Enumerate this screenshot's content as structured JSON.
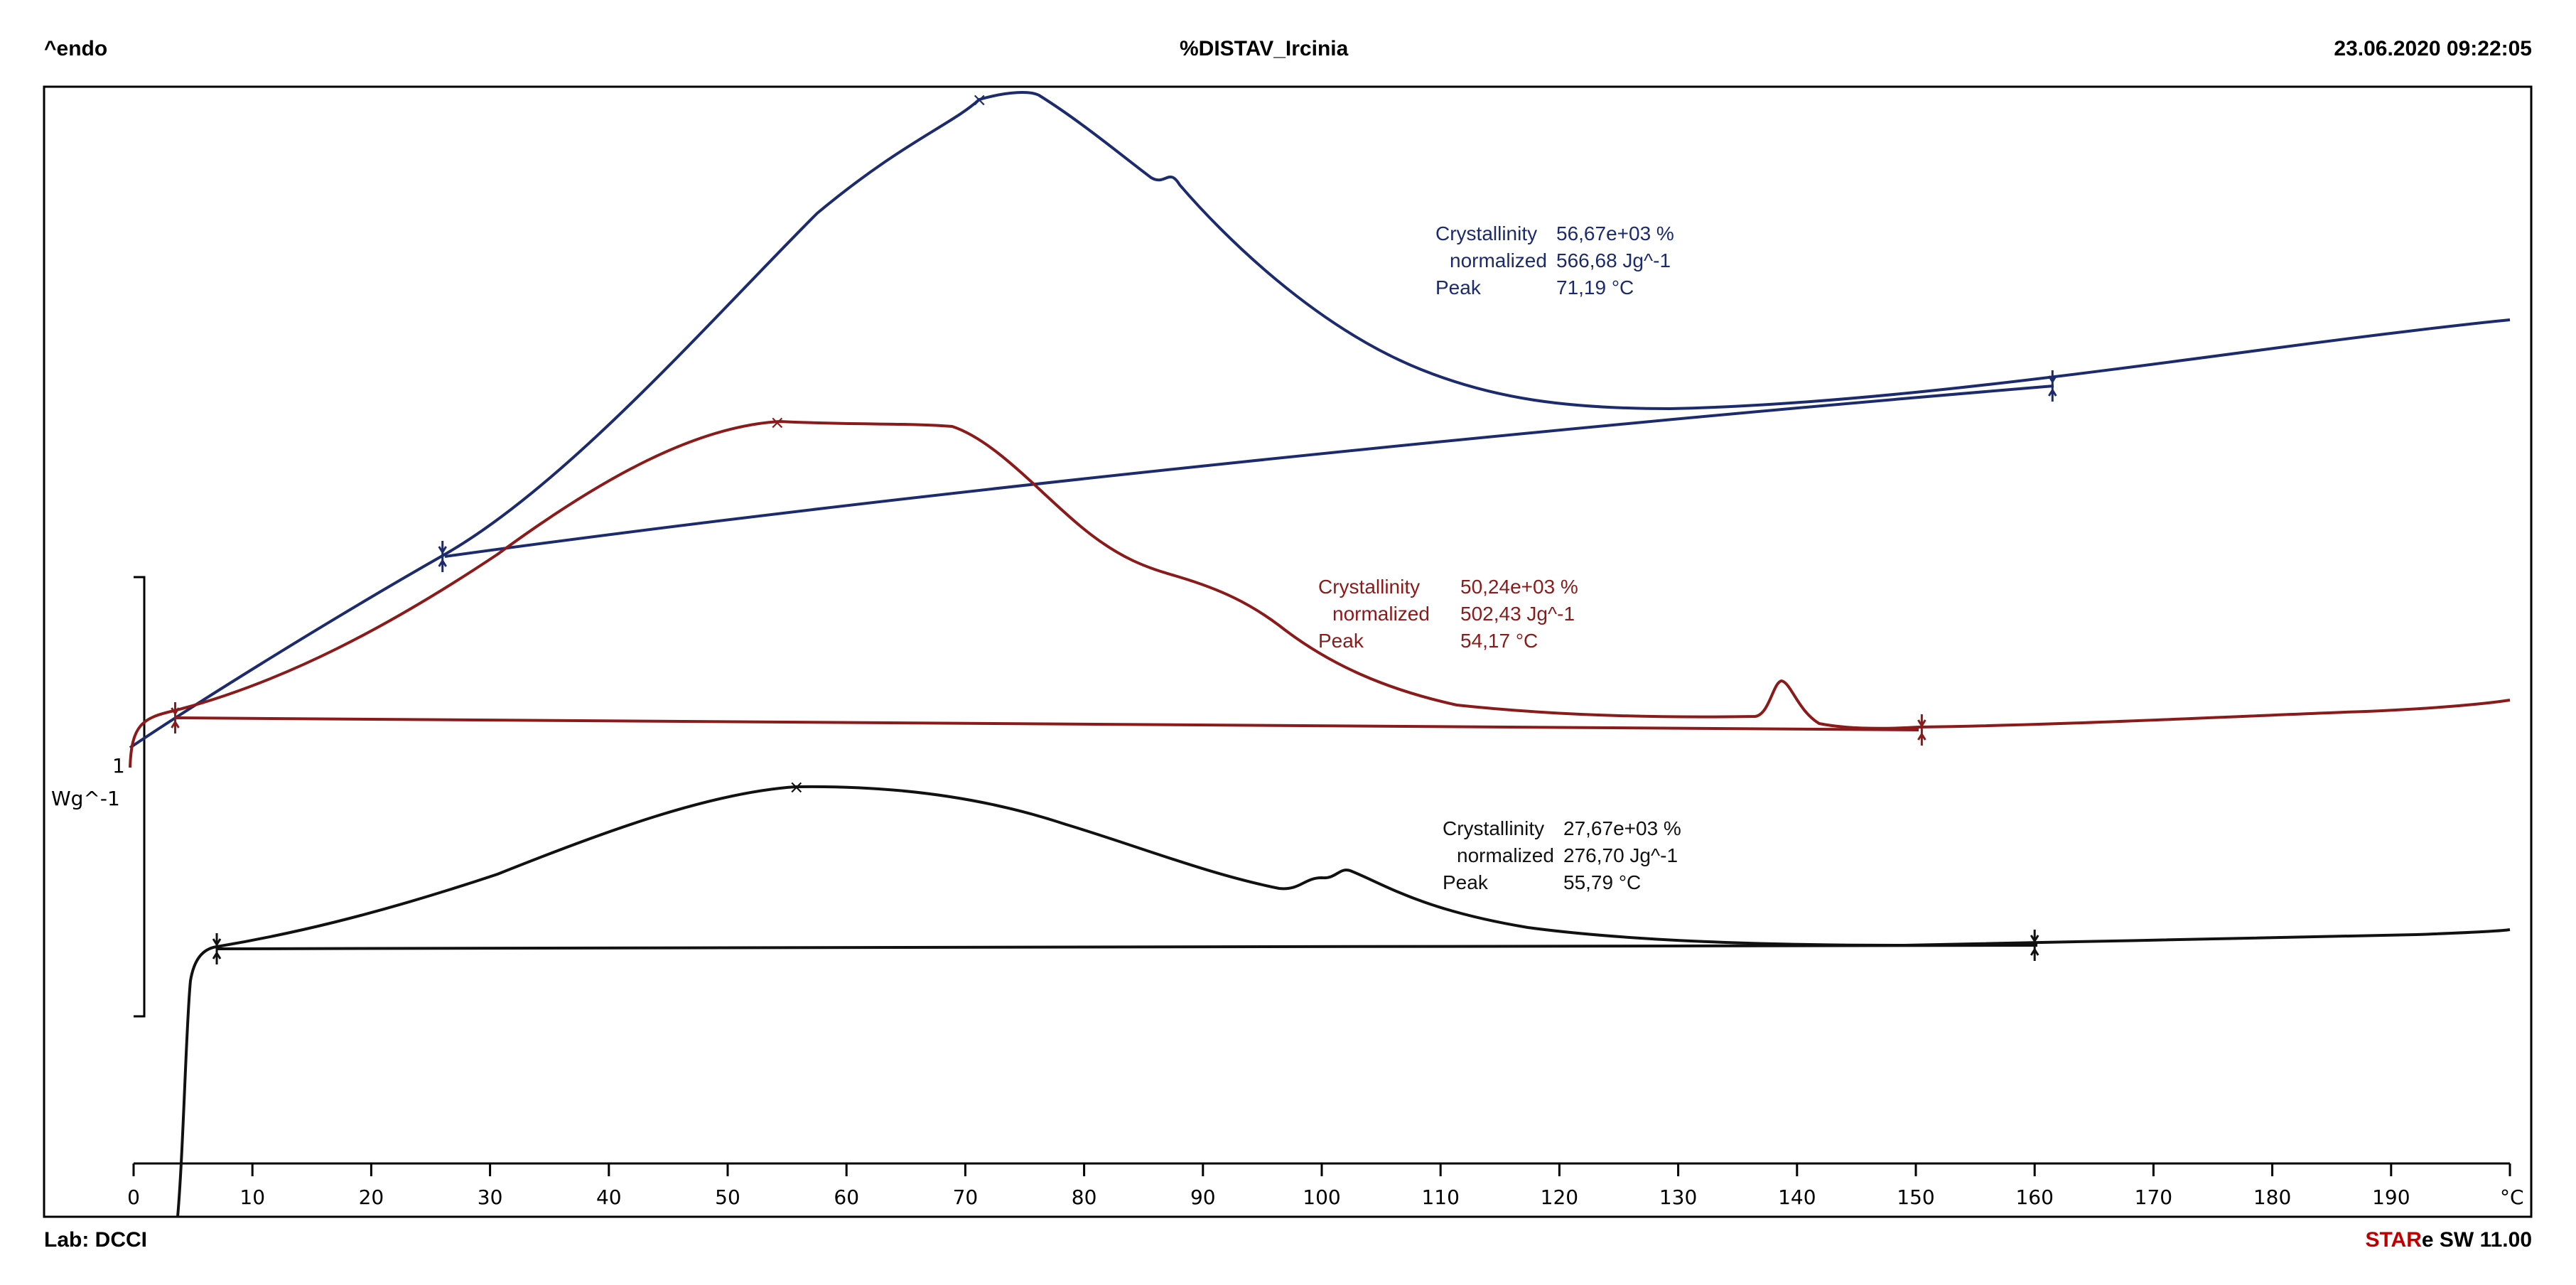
{
  "header": {
    "left": "^endo",
    "center": "%DISTAV_Ircinia",
    "right": "23.06.2020 09:22:05"
  },
  "footer": {
    "left": "Lab: DCCI",
    "right_star": "STAR",
    "right_rest": "SW 11.00"
  },
  "chart_data": {
    "type": "line",
    "title": "%DISTAV_Ircinia",
    "xlabel": "°C",
    "ylabel": "Wg^-1",
    "scale_bar_label": "1",
    "xlim": [
      0,
      200
    ],
    "x_ticks": [
      0,
      10,
      20,
      30,
      40,
      50,
      60,
      70,
      80,
      90,
      100,
      110,
      120,
      130,
      140,
      150,
      160,
      170,
      180,
      190
    ],
    "series": [
      {
        "name": "blue",
        "color": "#1c2a6e",
        "peak_marker_x": 71.19,
        "baseline_limits_x": [
          26,
          161.5
        ],
        "annotations": {
          "crystallinity_label": "Crystallinity",
          "crystallinity_value": "56,67e+03 %",
          "normalized_label": "normalized",
          "normalized_value": "566,68 Jg^-1",
          "peak_label": "Peak",
          "peak_value": "71,19 °C"
        }
      },
      {
        "name": "red",
        "color": "#8b1a1a",
        "peak_marker_x": 54.17,
        "baseline_limits_x": [
          3.5,
          150.5
        ],
        "annotations": {
          "crystallinity_label": "Crystallinity",
          "crystallinity_value": "50,24e+03 %",
          "normalized_label": "normalized",
          "normalized_value": "502,43 Jg^-1",
          "peak_label": "Peak",
          "peak_value": "54,17 °C"
        }
      },
      {
        "name": "black",
        "color": "#111111",
        "peak_marker_x": 55.79,
        "baseline_limits_x": [
          7,
          160
        ],
        "annotations": {
          "crystallinity_label": "Crystallinity",
          "crystallinity_value": "27,67e+03 %",
          "normalized_label": "normalized",
          "normalized_value": "276,70 Jg^-1",
          "peak_label": "Peak",
          "peak_value": "55,79 °C"
        }
      }
    ]
  }
}
